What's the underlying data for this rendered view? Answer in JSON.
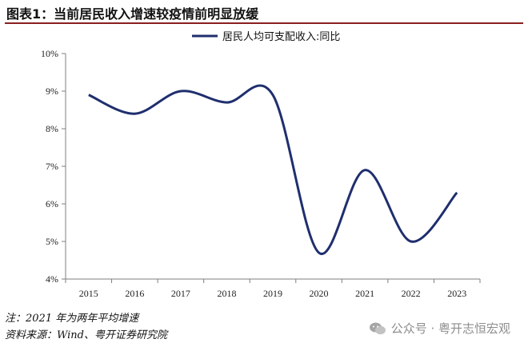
{
  "header": {
    "title": "图表1：当前居民收入增速较疫情前明显放缓"
  },
  "footer": {
    "note": "注：2021 年为两年平均增速",
    "source": "资料来源：Wind、粤开证券研究院"
  },
  "watermark": {
    "icon": "wechat-icon",
    "text": "公众号 · 粤开志恒宏观"
  },
  "colors": {
    "series": "#1f2f6e",
    "axis": "#7f7f7f",
    "title_rule": "#8a1f1f"
  },
  "chart_data": {
    "type": "line",
    "title": "",
    "xlabel": "",
    "ylabel": "",
    "categories": [
      "2015",
      "2016",
      "2017",
      "2018",
      "2019",
      "2020",
      "2021",
      "2022",
      "2023"
    ],
    "series": [
      {
        "name": "居民人均可支配收入:同比",
        "values": [
          8.9,
          8.4,
          9.0,
          8.7,
          8.9,
          4.7,
          6.9,
          5.0,
          6.3
        ]
      }
    ],
    "ylim": [
      4,
      10
    ],
    "yticks": [
      4,
      5,
      6,
      7,
      8,
      9,
      10
    ],
    "ytick_labels": [
      "4%",
      "5%",
      "6%",
      "7%",
      "8%",
      "9%",
      "10%"
    ],
    "grid": false,
    "smooth": true,
    "legend_position": "top-center"
  }
}
